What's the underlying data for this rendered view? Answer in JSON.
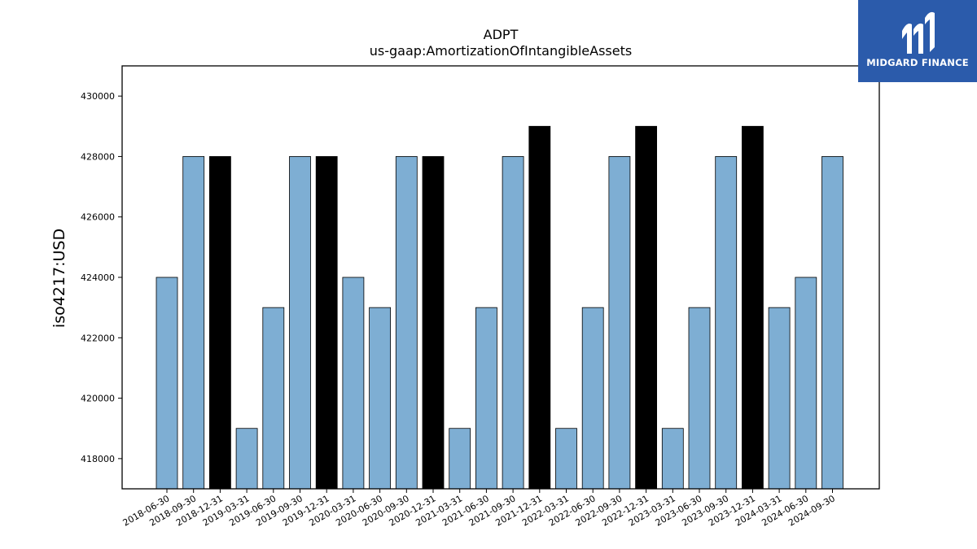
{
  "chart_data": {
    "type": "bar",
    "title": "ADPT",
    "subtitle": "us-gaap:AmortizationOfIntangibleAssets",
    "xlabel": "",
    "ylabel": "iso4217:USD",
    "ylim": [
      417000,
      431000
    ],
    "yticks": [
      418000,
      420000,
      422000,
      424000,
      426000,
      428000,
      430000
    ],
    "categories": [
      "2018-06-30",
      "2018-09-30",
      "2018-12-31",
      "2019-03-31",
      "2019-06-30",
      "2019-09-30",
      "2019-12-31",
      "2020-03-31",
      "2020-06-30",
      "2020-09-30",
      "2020-12-31",
      "2021-03-31",
      "2021-06-30",
      "2021-09-30",
      "2021-12-31",
      "2022-03-31",
      "2022-06-30",
      "2022-09-30",
      "2022-12-31",
      "2023-03-31",
      "2023-06-30",
      "2023-09-30",
      "2023-12-31",
      "2024-03-31",
      "2024-06-30",
      "2024-09-30"
    ],
    "values": [
      424000,
      428000,
      428000,
      419000,
      423000,
      428000,
      428000,
      424000,
      423000,
      428000,
      428000,
      419000,
      423000,
      428000,
      429000,
      419000,
      423000,
      428000,
      429000,
      419000,
      423000,
      428000,
      429000,
      423000,
      424000,
      428000
    ],
    "bar_colors": [
      "#7eaed3",
      "#7eaed3",
      "#000000",
      "#7eaed3",
      "#7eaed3",
      "#7eaed3",
      "#000000",
      "#7eaed3",
      "#7eaed3",
      "#7eaed3",
      "#000000",
      "#7eaed3",
      "#7eaed3",
      "#7eaed3",
      "#000000",
      "#7eaed3",
      "#7eaed3",
      "#7eaed3",
      "#000000",
      "#7eaed3",
      "#7eaed3",
      "#7eaed3",
      "#000000",
      "#7eaed3",
      "#7eaed3",
      "#7eaed3"
    ],
    "grid": false,
    "legend": "none"
  },
  "logo": {
    "text": "MIDGARD FINANCE",
    "background": "#2b5bab"
  }
}
